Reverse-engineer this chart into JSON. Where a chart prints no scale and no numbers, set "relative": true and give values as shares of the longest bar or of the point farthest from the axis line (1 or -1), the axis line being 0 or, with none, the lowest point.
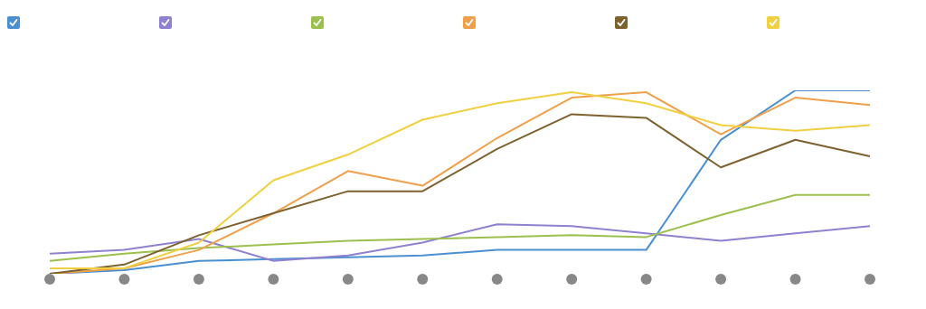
{
  "chart_data": {
    "type": "line",
    "relative": true,
    "marker": "none",
    "line_style": "solid",
    "grid": false,
    "categories": [
      null,
      null,
      null,
      null,
      null,
      null,
      null,
      null,
      null,
      null,
      null,
      null
    ],
    "series": [
      {
        "color": "#4a90d0",
        "values": [
          0,
          0.02,
          0.07,
          0.08,
          0.09,
          0.1,
          0.13,
          0.13,
          0.13,
          0.73,
          1,
          1
        ]
      },
      {
        "color": "#9080d0",
        "values": [
          0.11,
          0.13,
          0.19,
          0.07,
          0.1,
          0.17,
          0.27,
          0.26,
          0.22,
          0.18,
          0.22,
          0.26
        ]
      },
      {
        "color": "#9cc04e",
        "values": [
          0.07,
          0.11,
          0.14,
          0.16,
          0.18,
          0.19,
          0.2,
          0.21,
          0.2,
          0.32,
          0.43,
          0.43
        ]
      },
      {
        "color": "#f0a04a",
        "values": [
          0,
          0.03,
          0.13,
          0.33,
          0.56,
          0.48,
          0.74,
          0.96,
          0.99,
          0.76,
          0.96,
          0.92
        ]
      },
      {
        "color": "#7d6230",
        "values": [
          0,
          0.05,
          0.21,
          0.33,
          0.45,
          0.45,
          0.68,
          0.87,
          0.85,
          0.58,
          0.73,
          0.64
        ]
      },
      {
        "color": "#f0d040",
        "values": [
          0.03,
          0.03,
          0.17,
          0.51,
          0.65,
          0.84,
          0.93,
          0.99,
          0.93,
          0.81,
          0.78,
          0.81
        ]
      }
    ]
  }
}
